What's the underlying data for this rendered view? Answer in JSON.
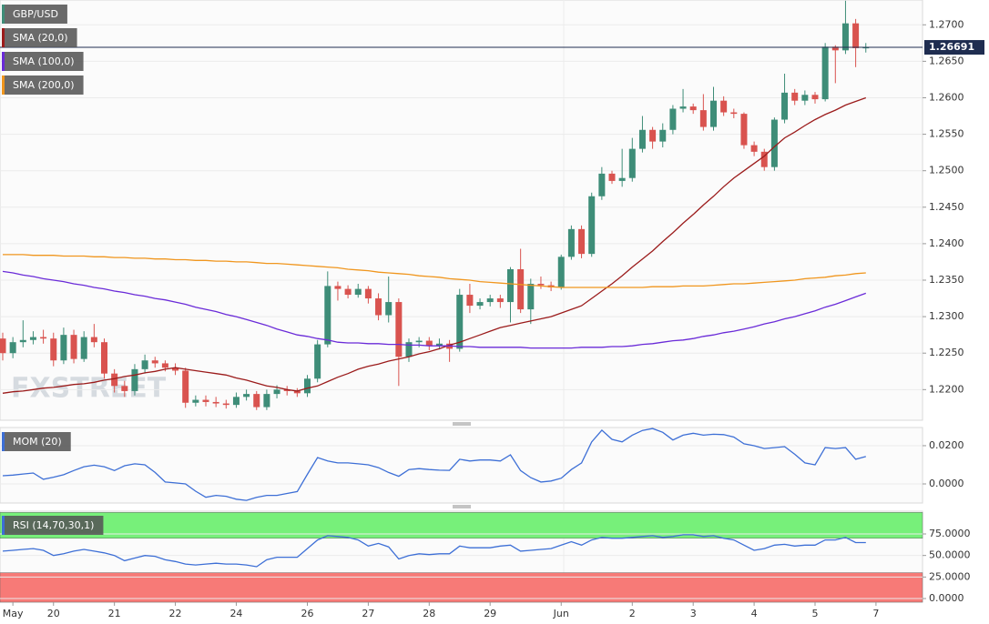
{
  "chart_data": [
    {
      "type": "candlestick",
      "title": "GBP/USD",
      "watermark": "FXSTREET",
      "up_color": "#3e8d78",
      "down_color": "#d9534f",
      "categories": [
        null,
        "May",
        null,
        null,
        null,
        "20",
        null,
        null,
        null,
        null,
        null,
        "21",
        null,
        null,
        null,
        null,
        null,
        "22",
        null,
        null,
        null,
        null,
        null,
        "24",
        null,
        null,
        null,
        null,
        null,
        null,
        "26",
        null,
        null,
        null,
        null,
        null,
        "27",
        null,
        null,
        null,
        null,
        null,
        "28",
        null,
        null,
        null,
        null,
        null,
        "29",
        null,
        null,
        null,
        null,
        null,
        null,
        "Jun",
        null,
        null,
        null,
        null,
        null,
        null,
        "2",
        null,
        null,
        null,
        null,
        null,
        "3",
        null,
        null,
        null,
        null,
        null,
        "4",
        null,
        null,
        null,
        null,
        null,
        "5",
        null,
        null,
        null,
        null,
        null,
        "7"
      ],
      "open": [
        1.227,
        1.225,
        1.2265,
        1.2268,
        1.2272,
        1.227,
        1.224,
        1.2275,
        1.2242,
        1.2272,
        1.2265,
        1.2222,
        1.2205,
        1.2198,
        1.2228,
        1.224,
        1.2236,
        1.223,
        1.2226,
        1.2182,
        1.2186,
        1.2183,
        1.2181,
        1.2179,
        1.219,
        1.2194,
        1.2176,
        1.2194,
        1.22,
        1.2198,
        1.2195,
        1.2215,
        1.2262,
        1.2342,
        1.2338,
        1.233,
        1.2338,
        1.2325,
        1.2302,
        1.232,
        1.2245,
        1.2265,
        1.2267,
        1.226,
        1.2263,
        1.2256,
        1.233,
        1.2315,
        1.232,
        1.2325,
        1.232,
        1.2365,
        1.231,
        1.2345,
        1.2343,
        1.234,
        1.2382,
        1.242,
        1.2386,
        1.2465,
        1.2496,
        1.2486,
        1.249,
        1.253,
        1.2556,
        1.254,
        1.2556,
        1.2585,
        1.2588,
        1.2583,
        1.256,
        1.2596,
        1.258,
        1.2578,
        1.2535,
        1.2526,
        1.2505,
        1.257,
        1.2607,
        1.2596,
        1.2604,
        1.2598,
        1.267,
        1.2665,
        1.2702,
        1.2668,
        null
      ],
      "high": [
        1.2278,
        1.2272,
        1.2295,
        1.228,
        1.2282,
        1.2278,
        1.2285,
        1.2282,
        1.228,
        1.229,
        1.227,
        1.2228,
        1.2212,
        1.2235,
        1.2248,
        1.2245,
        1.224,
        1.2236,
        1.223,
        1.2192,
        1.2192,
        1.219,
        1.2186,
        1.2196,
        1.22,
        1.2198,
        1.22,
        1.2206,
        1.2205,
        1.2202,
        1.222,
        1.2268,
        1.2362,
        1.2348,
        1.2343,
        1.2345,
        1.2342,
        1.2332,
        1.2355,
        1.2325,
        1.227,
        1.2272,
        1.2272,
        1.227,
        1.2268,
        1.2338,
        1.2345,
        1.2325,
        1.233,
        1.233,
        1.2368,
        1.2393,
        1.2352,
        1.2355,
        1.2348,
        1.2385,
        1.2425,
        1.2425,
        1.247,
        1.2505,
        1.25,
        1.253,
        1.2545,
        1.2575,
        1.256,
        1.2565,
        1.259,
        1.2612,
        1.2592,
        1.2605,
        1.2615,
        1.2602,
        1.2585,
        1.258,
        1.254,
        1.253,
        1.2573,
        1.2633,
        1.2612,
        1.261,
        1.2608,
        1.2675,
        1.2672,
        1.2733,
        1.2708,
        1.2675,
        null
      ],
      "low": [
        1.224,
        1.2243,
        1.2258,
        1.2262,
        1.2263,
        1.2232,
        1.2235,
        1.2236,
        1.2238,
        1.2258,
        1.2215,
        1.2196,
        1.219,
        1.2192,
        1.2222,
        1.223,
        1.2225,
        1.222,
        1.2175,
        1.2177,
        1.2177,
        1.2176,
        1.2174,
        1.2175,
        1.2185,
        1.2172,
        1.2172,
        1.2188,
        1.2192,
        1.219,
        1.219,
        1.221,
        1.2258,
        1.2322,
        1.2325,
        1.2326,
        1.2318,
        1.2295,
        1.2292,
        1.2205,
        1.2238,
        1.2258,
        1.2254,
        1.2255,
        1.2238,
        1.2252,
        1.2305,
        1.231,
        1.2314,
        1.2312,
        1.2292,
        1.2305,
        1.229,
        1.2338,
        1.2335,
        1.2337,
        1.2378,
        1.238,
        1.2382,
        1.246,
        1.2482,
        1.2478,
        1.2485,
        1.2525,
        1.253,
        1.2532,
        1.255,
        1.258,
        1.2578,
        1.2555,
        1.2555,
        1.2575,
        1.2572,
        1.253,
        1.252,
        1.25,
        1.25,
        1.2565,
        1.259,
        1.259,
        1.2592,
        1.2595,
        1.262,
        1.266,
        1.2642,
        1.2662,
        null
      ],
      "close": [
        1.225,
        1.2265,
        1.2268,
        1.2272,
        1.227,
        1.224,
        1.2275,
        1.2242,
        1.2272,
        1.2265,
        1.2222,
        1.2205,
        1.2198,
        1.2228,
        1.224,
        1.2236,
        1.223,
        1.2226,
        1.2182,
        1.2186,
        1.2183,
        1.2181,
        1.2179,
        1.219,
        1.2194,
        1.2176,
        1.2194,
        1.22,
        1.2198,
        1.2195,
        1.2215,
        1.2262,
        1.2342,
        1.2338,
        1.233,
        1.2338,
        1.2325,
        1.2302,
        1.232,
        1.2245,
        1.2265,
        1.2267,
        1.226,
        1.2263,
        1.2256,
        1.233,
        1.2315,
        1.232,
        1.2325,
        1.232,
        1.2365,
        1.231,
        1.2345,
        1.2343,
        1.234,
        1.2382,
        1.242,
        1.2386,
        1.2465,
        1.2496,
        1.2486,
        1.249,
        1.253,
        1.2556,
        1.254,
        1.2556,
        1.2585,
        1.2588,
        1.2583,
        1.256,
        1.2596,
        1.258,
        1.2578,
        1.2535,
        1.2526,
        1.2505,
        1.257,
        1.2607,
        1.2596,
        1.2604,
        1.2598,
        1.267,
        1.2665,
        1.2702,
        1.2668,
        1.2669,
        null
      ],
      "series": [
        {
          "name": "SMA (20,0)",
          "color": "#9b1b1b",
          "values": [
            1.2195,
            1.2197,
            1.2198,
            1.22,
            1.2202,
            1.2203,
            1.2205,
            1.2207,
            1.2208,
            1.221,
            1.2213,
            1.2215,
            1.2218,
            1.222,
            1.2223,
            1.2225,
            1.2228,
            1.223,
            1.2228,
            1.2226,
            1.2224,
            1.2222,
            1.222,
            1.2216,
            1.2213,
            1.2209,
            1.2205,
            1.2203,
            1.22,
            1.2198,
            1.2202,
            1.2205,
            1.2211,
            1.2217,
            1.2222,
            1.2228,
            1.2232,
            1.2235,
            1.2239,
            1.2242,
            1.2245,
            1.2249,
            1.2252,
            1.2256,
            1.2261,
            1.2265,
            1.227,
            1.2275,
            1.228,
            1.2285,
            1.2288,
            1.2291,
            1.2294,
            1.2297,
            1.23,
            1.2305,
            1.231,
            1.2315,
            1.2325,
            1.2335,
            1.2345,
            1.2356,
            1.2368,
            1.2379,
            1.239,
            1.2403,
            1.2415,
            1.2428,
            1.244,
            1.2453,
            1.2465,
            1.2478,
            1.249,
            1.25,
            1.251,
            1.252,
            1.2533,
            1.2545,
            1.2553,
            1.2562,
            1.257,
            1.2577,
            1.2583,
            1.259,
            1.2595,
            1.26,
            null
          ]
        },
        {
          "name": "SMA (100,0)",
          "color": "#6a2bd8",
          "values": [
            1.2362,
            1.236,
            1.2357,
            1.2355,
            1.2352,
            1.235,
            1.2348,
            1.2345,
            1.2343,
            1.234,
            1.2338,
            1.2335,
            1.2333,
            1.233,
            1.2328,
            1.2325,
            1.2323,
            1.232,
            1.2317,
            1.2313,
            1.231,
            1.2307,
            1.2303,
            1.23,
            1.2296,
            1.2292,
            1.2288,
            1.2283,
            1.2279,
            1.2275,
            1.2273,
            1.227,
            1.2268,
            1.2265,
            1.2264,
            1.2264,
            1.2263,
            1.2263,
            1.2262,
            1.2262,
            1.2261,
            1.2261,
            1.226,
            1.226,
            1.226,
            1.2259,
            1.2259,
            1.2258,
            1.2258,
            1.2258,
            1.2258,
            1.2258,
            1.2257,
            1.2257,
            1.2257,
            1.2257,
            1.2257,
            1.2258,
            1.2258,
            1.2258,
            1.2259,
            1.2259,
            1.226,
            1.2262,
            1.2263,
            1.2265,
            1.2267,
            1.2268,
            1.227,
            1.2273,
            1.2275,
            1.2278,
            1.228,
            1.2283,
            1.2286,
            1.229,
            1.2293,
            1.2297,
            1.23,
            1.2304,
            1.2308,
            1.2313,
            1.2317,
            1.2322,
            1.2327,
            1.2332,
            null
          ]
        },
        {
          "name": "SMA (200,0)",
          "color": "#f0961e",
          "values": [
            1.2385,
            1.2385,
            1.2385,
            1.2384,
            1.2384,
            1.2384,
            1.2383,
            1.2383,
            1.2383,
            1.2382,
            1.2382,
            1.2381,
            1.2381,
            1.238,
            1.238,
            1.2379,
            1.2379,
            1.2378,
            1.2378,
            1.2377,
            1.2377,
            1.2376,
            1.2376,
            1.2375,
            1.2375,
            1.2374,
            1.2373,
            1.2373,
            1.2372,
            1.2371,
            1.237,
            1.2369,
            1.2368,
            1.2367,
            1.2365,
            1.2364,
            1.2363,
            1.2361,
            1.236,
            1.2359,
            1.2358,
            1.2356,
            1.2355,
            1.2354,
            1.2352,
            1.2351,
            1.235,
            1.2348,
            1.2347,
            1.2346,
            1.2345,
            1.2344,
            1.2343,
            1.2342,
            1.2341,
            1.234,
            1.234,
            1.234,
            1.234,
            1.234,
            1.234,
            1.234,
            1.234,
            1.234,
            1.2341,
            1.2341,
            1.2341,
            1.2342,
            1.2342,
            1.2342,
            1.2343,
            1.2344,
            1.2345,
            1.2345,
            1.2346,
            1.2347,
            1.2348,
            1.2349,
            1.235,
            1.2352,
            1.2353,
            1.2354,
            1.2356,
            1.2357,
            1.2359,
            1.236,
            null
          ]
        }
      ],
      "last_price": {
        "value": 1.26691,
        "label": "1.26691"
      },
      "last_price_color": "#1f2d50",
      "ylim": [
        1.2158,
        1.2734
      ],
      "yticks": [
        {
          "value": 1.22,
          "label": "1.2200"
        },
        {
          "value": 1.225,
          "label": "1.2250"
        },
        {
          "value": 1.23,
          "label": "1.2300"
        },
        {
          "value": 1.235,
          "label": "1.2350"
        },
        {
          "value": 1.24,
          "label": "1.2400"
        },
        {
          "value": 1.245,
          "label": "1.2450"
        },
        {
          "value": 1.25,
          "label": "1.2500"
        },
        {
          "value": 1.255,
          "label": "1.2550"
        },
        {
          "value": 1.26,
          "label": "1.2600"
        },
        {
          "value": 1.265,
          "label": "1.2650"
        },
        {
          "value": 1.27,
          "label": "1.2700"
        }
      ],
      "grid": true
    },
    {
      "type": "line",
      "series": [
        {
          "name": "MOM (20)",
          "color": "#3d6fd6",
          "values": [
            0.0043,
            0.0046,
            0.0052,
            0.0057,
            0.0024,
            0.0035,
            0.0048,
            0.007,
            0.009,
            0.0098,
            0.009,
            0.007,
            0.0095,
            0.0105,
            0.01,
            0.006,
            0.001,
            0.0005,
            0.0,
            -0.0038,
            -0.007,
            -0.006,
            -0.0065,
            -0.008,
            -0.0086,
            -0.007,
            -0.006,
            -0.006,
            -0.005,
            -0.004,
            0.005,
            0.0138,
            0.012,
            0.011,
            0.011,
            0.0105,
            0.01,
            0.0085,
            0.006,
            0.004,
            0.0075,
            0.008,
            0.0075,
            0.0072,
            0.0071,
            0.0129,
            0.012,
            0.0125,
            0.0125,
            0.012,
            0.0152,
            0.007,
            0.0033,
            0.001,
            0.0015,
            0.003,
            0.0075,
            0.011,
            0.022,
            0.0281,
            0.0233,
            0.022,
            0.0255,
            0.028,
            0.029,
            0.027,
            0.023,
            0.0255,
            0.0265,
            0.0255,
            0.026,
            0.0258,
            0.0245,
            0.021,
            0.02,
            0.0185,
            0.019,
            0.0195,
            0.0155,
            0.011,
            0.01,
            0.019,
            0.0185,
            0.019,
            0.0129,
            0.0143,
            null
          ]
        }
      ],
      "ylim": [
        -0.01,
        0.0295
      ],
      "yticks": [
        {
          "value": 0,
          "label": "0.0000"
        },
        {
          "value": 0.02,
          "label": "0.0200"
        }
      ],
      "grid": true
    },
    {
      "type": "line",
      "series": [
        {
          "name": "RSI (14,70,30,1)",
          "color": "#3d6fd6",
          "values": [
            55,
            56,
            57,
            58,
            56,
            50,
            52,
            55,
            57,
            55,
            53,
            50,
            44,
            47,
            50,
            49,
            45,
            43,
            40,
            39,
            40,
            41,
            40,
            40,
            39,
            37,
            45,
            48,
            48,
            48,
            58,
            68,
            73,
            72,
            71,
            68,
            61,
            64,
            60,
            46,
            50,
            52,
            51,
            52,
            52,
            61,
            59,
            59,
            59,
            61,
            62,
            55,
            56,
            57,
            58,
            62,
            66,
            62,
            68,
            71,
            70,
            70,
            71,
            72,
            73,
            71,
            72,
            74,
            74,
            72,
            73,
            70,
            68,
            62,
            56,
            58,
            62,
            63,
            61,
            62,
            62,
            68,
            68,
            71,
            65,
            65,
            null
          ]
        }
      ],
      "bands": [
        {
          "from": 70,
          "to": 100,
          "color": "#77f07a"
        },
        {
          "from": -4.2,
          "to": 30,
          "color": "#f77a77"
        }
      ],
      "ylim": [
        -4.2,
        101.4
      ],
      "yticks": [
        {
          "value": 0,
          "label": "0.0000"
        },
        {
          "value": 25,
          "label": "25.0000"
        },
        {
          "value": 50,
          "label": "50.0000"
        },
        {
          "value": 75,
          "label": "75.0000"
        }
      ],
      "grid": true
    }
  ]
}
